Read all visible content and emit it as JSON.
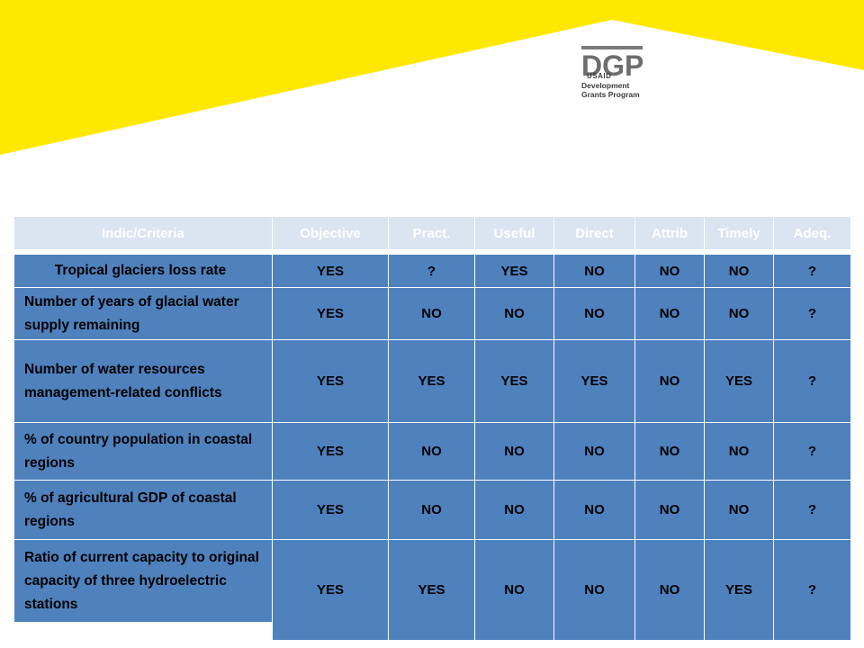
{
  "logo": {
    "mark": "DGP",
    "agency": "USAID",
    "line1": "Development",
    "line2": "Grants Program"
  },
  "table": {
    "headers": [
      "Indic/Criteria",
      "Objective",
      "Pract.",
      "Useful",
      "Direct",
      "Attrib",
      "Timely",
      "Adeq."
    ],
    "rows": [
      {
        "label": "Tropical glaciers loss rate",
        "values": [
          "YES",
          "?",
          "YES",
          "NO",
          "NO",
          "NO",
          "?"
        ]
      },
      {
        "label": "Number of years of glacial water supply remaining",
        "values": [
          "YES",
          "NO",
          "NO",
          "NO",
          "NO",
          "NO",
          "?"
        ]
      },
      {
        "label": "Number of water resources management-related conflicts",
        "values": [
          "YES",
          "YES",
          "YES",
          "YES",
          "NO",
          "YES",
          "?"
        ]
      },
      {
        "label": "% of country population in coastal regions",
        "values": [
          "YES",
          "NO",
          "NO",
          "NO",
          "NO",
          "NO",
          "?"
        ]
      },
      {
        "label": "% of agricultural GDP of coastal regions",
        "values": [
          "YES",
          "NO",
          "NO",
          "NO",
          "NO",
          "NO",
          "?"
        ]
      },
      {
        "label": "Ratio of current capacity to original capacity of three hydroelectric stations",
        "values": [
          "YES",
          "YES",
          "NO",
          "NO",
          "NO",
          "YES",
          "?"
        ]
      }
    ]
  },
  "colors": {
    "banner": "#ffe800",
    "cell": "#4f81bd",
    "header": "#dbe5f1"
  }
}
